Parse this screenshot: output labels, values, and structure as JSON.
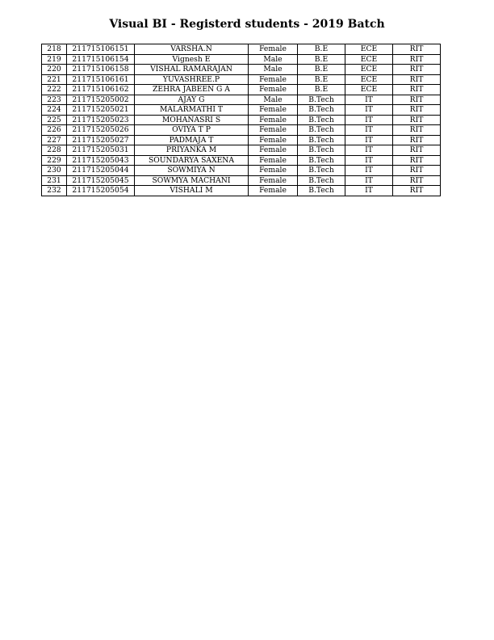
{
  "title": "Visual BI - Registerd students - 2019 Batch",
  "rows": [
    [
      "218",
      "211715106151",
      "VARSHA.N",
      "Female",
      "B.E",
      "ECE",
      "RIT"
    ],
    [
      "219",
      "211715106154",
      "Vignesh E",
      "Male",
      "B.E",
      "ECE",
      "RIT"
    ],
    [
      "220",
      "211715106158",
      "VISHAL RAMARAJAN",
      "Male",
      "B.E",
      "ECE",
      "RIT"
    ],
    [
      "221",
      "211715106161",
      "YUVASHREE.P",
      "Female",
      "B.E",
      "ECE",
      "RIT"
    ],
    [
      "222",
      "211715106162",
      "ZEHRA JABEEN G A",
      "Female",
      "B.E",
      "ECE",
      "RIT"
    ],
    [
      "223",
      "211715205002",
      "AJAY G",
      "Male",
      "B.Tech",
      "IT",
      "RIT"
    ],
    [
      "224",
      "211715205021",
      "MALARMATHI T",
      "Female",
      "B.Tech",
      "IT",
      "RIT"
    ],
    [
      "225",
      "211715205023",
      "MOHANASRI S",
      "Female",
      "B.Tech",
      "IT",
      "RIT"
    ],
    [
      "226",
      "211715205026",
      "OVIYA T P",
      "Female",
      "B.Tech",
      "IT",
      "RIT"
    ],
    [
      "227",
      "211715205027",
      "PADMAJA T",
      "Female",
      "B.Tech",
      "IT",
      "RIT"
    ],
    [
      "228",
      "211715205031",
      "PRIYANKA M",
      "Female",
      "B.Tech",
      "IT",
      "RIT"
    ],
    [
      "229",
      "211715205043",
      "SOUNDARYA SAXENA",
      "Female",
      "B.Tech",
      "IT",
      "RIT"
    ],
    [
      "230",
      "211715205044",
      "SOWMIYA N",
      "Female",
      "B.Tech",
      "IT",
      "RIT"
    ],
    [
      "231",
      "211715205045",
      "SOWMYA MACHANI",
      "Female",
      "B.Tech",
      "IT",
      "RIT"
    ],
    [
      "232",
      "211715205054",
      "VISHALI M",
      "Female",
      "B.Tech",
      "IT",
      "RIT"
    ]
  ]
}
